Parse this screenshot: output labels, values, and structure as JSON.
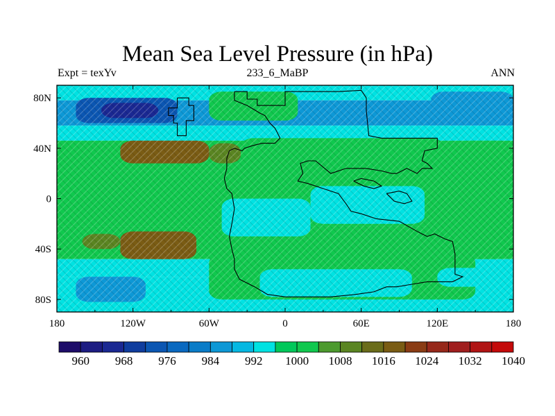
{
  "title": "Mean Sea Level Pressure (in hPa)",
  "left_label": "Expt = texYv",
  "center_label": "233_6_MaBP",
  "right_label": "ANN",
  "lon_ticks": [
    "180",
    "120W",
    "60W",
    "0",
    "60E",
    "120E",
    "180"
  ],
  "lat_ticks": [
    "80N",
    "40N",
    "0",
    "40S",
    "80S"
  ],
  "lon_values": [
    -180,
    -120,
    -60,
    0,
    60,
    120,
    180
  ],
  "lat_values": [
    80,
    40,
    0,
    -40,
    -80
  ],
  "colorbar": {
    "colors": [
      "#1d0c69",
      "#1c1c82",
      "#1a2892",
      "#0f3d9e",
      "#0b56b2",
      "#0a69c0",
      "#0a7cc8",
      "#0d98d6",
      "#05b8e2",
      "#00e2e2",
      "#00c85a",
      "#10c84e",
      "#4c9a2e",
      "#5a8522",
      "#6a6c1a",
      "#7a5c14",
      "#8a3c14",
      "#96281a",
      "#a01e1e",
      "#b01414",
      "#c40a0a"
    ],
    "labels": [
      "960",
      "968",
      "976",
      "984",
      "992",
      "1000",
      "1008",
      "1016",
      "1024",
      "1032",
      "1040"
    ],
    "label_bounds": [
      960,
      968,
      976,
      984,
      992,
      1000,
      1008,
      1016,
      1024,
      1032,
      1040
    ]
  },
  "field": {
    "lon_range": [
      -180,
      180
    ],
    "lat_range": [
      -90,
      90
    ],
    "bands": [
      {
        "lat": [
          78,
          90
        ],
        "value": 994
      },
      {
        "lat": [
          58,
          78
        ],
        "value": 988
      },
      {
        "lat": [
          46,
          58
        ],
        "value": 998
      },
      {
        "lat": [
          22,
          46
        ],
        "value": 1006
      },
      {
        "lat": [
          -22,
          22
        ],
        "value": 1000
      },
      {
        "lat": [
          -48,
          -22
        ],
        "value": 1006
      },
      {
        "lat": [
          -62,
          -48
        ],
        "value": 998
      },
      {
        "lat": [
          -82,
          -62
        ],
        "value": 992
      },
      {
        "lat": [
          -90,
          -82
        ],
        "value": 994
      }
    ],
    "cells": [
      {
        "lon": [
          -165,
          -85
        ],
        "lat": [
          60,
          80
        ],
        "value": 971
      },
      {
        "lon": [
          -145,
          -100
        ],
        "lat": [
          64,
          76
        ],
        "value": 965
      },
      {
        "lon": [
          -60,
          10
        ],
        "lat": [
          62,
          85
        ],
        "value": 1000
      },
      {
        "lon": [
          -130,
          -60
        ],
        "lat": [
          28,
          46
        ],
        "value": 1018
      },
      {
        "lon": [
          -115,
          -70
        ],
        "lat": [
          30,
          42
        ],
        "value": 1022
      },
      {
        "lon": [
          -60,
          -35
        ],
        "lat": [
          28,
          44
        ],
        "value": 1012
      },
      {
        "lon": [
          -35,
          125
        ],
        "lat": [
          0,
          48
        ],
        "value": 1001
      },
      {
        "lon": [
          -50,
          20
        ],
        "lat": [
          -30,
          0
        ],
        "value": 998
      },
      {
        "lon": [
          -45,
          -10
        ],
        "lat": [
          -15,
          0
        ],
        "value": 995
      },
      {
        "lon": [
          20,
          110
        ],
        "lat": [
          -20,
          10
        ],
        "value": 999
      },
      {
        "lon": [
          -130,
          -70
        ],
        "lat": [
          -48,
          -26
        ],
        "value": 1018
      },
      {
        "lon": [
          -115,
          -75
        ],
        "lat": [
          -44,
          -32
        ],
        "value": 1022
      },
      {
        "lon": [
          -160,
          -130
        ],
        "lat": [
          -40,
          -28
        ],
        "value": 1008
      },
      {
        "lon": [
          -60,
          150
        ],
        "lat": [
          -80,
          -44
        ],
        "value": 1000
      },
      {
        "lon": [
          -20,
          100
        ],
        "lat": [
          -78,
          -56
        ],
        "value": 999
      },
      {
        "lon": [
          110,
          175
        ],
        "lat": [
          -48,
          -20
        ],
        "value": 1004
      },
      {
        "lon": [
          135,
          180
        ],
        "lat": [
          28,
          46
        ],
        "value": 1006
      },
      {
        "lon": [
          -165,
          -110
        ],
        "lat": [
          -82,
          -62
        ],
        "value": 990
      },
      {
        "lon": [
          120,
          180
        ],
        "lat": [
          -70,
          -55
        ],
        "value": 994
      },
      {
        "lon": [
          115,
          180
        ],
        "lat": [
          60,
          85
        ],
        "value": 991
      }
    ],
    "coastlines": [
      [
        [
          -85,
          80
        ],
        [
          -76,
          80
        ],
        [
          -76,
          74
        ],
        [
          -72,
          74
        ],
        [
          -72,
          62
        ],
        [
          -78,
          62
        ],
        [
          -78,
          50
        ],
        [
          -85,
          50
        ],
        [
          -85,
          60
        ],
        [
          -88,
          60
        ],
        [
          -88,
          66
        ],
        [
          -92,
          66
        ],
        [
          -92,
          72
        ],
        [
          -85,
          72
        ],
        [
          -85,
          80
        ]
      ],
      [
        [
          -40,
          85
        ],
        [
          -30,
          85
        ],
        [
          -30,
          79
        ],
        [
          -22,
          79
        ],
        [
          -22,
          74
        ],
        [
          -10,
          74
        ],
        [
          0,
          74
        ],
        [
          0,
          85
        ],
        [
          20,
          85
        ],
        [
          42,
          85
        ],
        [
          60,
          86
        ],
        [
          64,
          80
        ],
        [
          64,
          70
        ],
        [
          66,
          50
        ],
        [
          76,
          48
        ],
        [
          94,
          48
        ],
        [
          112,
          48
        ],
        [
          120,
          48
        ],
        [
          120,
          40
        ],
        [
          110,
          38
        ],
        [
          108,
          30
        ],
        [
          112,
          28
        ],
        [
          116,
          24
        ],
        [
          108,
          24
        ],
        [
          104,
          20
        ],
        [
          96,
          24
        ],
        [
          88,
          20
        ],
        [
          84,
          20
        ],
        [
          76,
          22
        ],
        [
          64,
          24
        ],
        [
          48,
          24
        ],
        [
          36,
          20
        ],
        [
          24,
          30
        ],
        [
          18,
          30
        ],
        [
          12,
          28
        ],
        [
          14,
          20
        ],
        [
          10,
          14
        ],
        [
          18,
          12
        ],
        [
          30,
          8
        ],
        [
          42,
          4
        ],
        [
          48,
          -4
        ],
        [
          52,
          -10
        ],
        [
          60,
          -12
        ],
        [
          72,
          -16
        ],
        [
          90,
          -18
        ],
        [
          104,
          -26
        ],
        [
          108,
          -28
        ],
        [
          112,
          -30
        ],
        [
          118,
          -28
        ],
        [
          126,
          -32
        ],
        [
          132,
          -34
        ],
        [
          134,
          -44
        ],
        [
          134,
          -60
        ],
        [
          140,
          -62
        ],
        [
          132,
          -66
        ],
        [
          112,
          -66
        ],
        [
          100,
          -68
        ],
        [
          88,
          -70
        ],
        [
          80,
          -70
        ],
        [
          70,
          -74
        ],
        [
          56,
          -76
        ],
        [
          36,
          -78
        ],
        [
          20,
          -78
        ],
        [
          0,
          -78
        ],
        [
          -14,
          -76
        ],
        [
          -24,
          -70
        ],
        [
          -36,
          -64
        ],
        [
          -40,
          -56
        ],
        [
          -40,
          -48
        ],
        [
          -42,
          -40
        ],
        [
          -44,
          -30
        ],
        [
          -42,
          -20
        ],
        [
          -40,
          -8
        ],
        [
          -42,
          4
        ],
        [
          -46,
          8
        ],
        [
          -48,
          16
        ],
        [
          -46,
          24
        ],
        [
          -46,
          32
        ],
        [
          -44,
          38
        ],
        [
          -40,
          40
        ],
        [
          -34,
          38
        ],
        [
          -32,
          40
        ],
        [
          -26,
          42
        ],
        [
          -18,
          44
        ],
        [
          -8,
          44
        ],
        [
          -4,
          48
        ],
        [
          -8,
          56
        ],
        [
          -12,
          60
        ],
        [
          -16,
          66
        ],
        [
          -20,
          68
        ],
        [
          -30,
          74
        ],
        [
          -40,
          78
        ],
        [
          -40,
          85
        ]
      ],
      [
        [
          54,
          14
        ],
        [
          60,
          16
        ],
        [
          70,
          14
        ],
        [
          76,
          10
        ],
        [
          70,
          8
        ],
        [
          62,
          10
        ],
        [
          54,
          14
        ]
      ],
      [
        [
          80,
          4
        ],
        [
          90,
          6
        ],
        [
          96,
          4
        ],
        [
          100,
          -2
        ],
        [
          94,
          -4
        ],
        [
          86,
          -2
        ],
        [
          80,
          4
        ]
      ]
    ]
  }
}
